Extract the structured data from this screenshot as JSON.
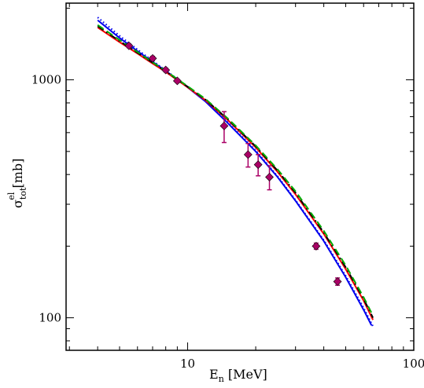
{
  "chart_data": {
    "type": "line",
    "x_scale": "log",
    "y_scale": "log",
    "xlim": [
      2.9,
      100
    ],
    "ylim": [
      73,
      2100
    ],
    "grid": false,
    "xlabel": {
      "main": "E",
      "sub": "n",
      "unit": " [MeV]"
    },
    "ylabel": {
      "main": "σ",
      "sub": "tot",
      "sup": "el",
      "unit": " [mb]"
    },
    "x_tick_labels": [
      {
        "value": 10,
        "label": "10"
      },
      {
        "value": 100,
        "label": "100"
      }
    ],
    "y_tick_labels": [
      {
        "value": 100,
        "label": "100"
      },
      {
        "value": 1000,
        "label": "1000"
      }
    ],
    "series": [
      {
        "style": "solid",
        "color": "#0000ee",
        "points": [
          [
            4,
            1780
          ],
          [
            5,
            1500
          ],
          [
            6,
            1320
          ],
          [
            7,
            1190
          ],
          [
            8,
            1090
          ],
          [
            10,
            930
          ],
          [
            12,
            810
          ],
          [
            15,
            660
          ],
          [
            20,
            500
          ],
          [
            25,
            390
          ],
          [
            30,
            310
          ],
          [
            40,
            210
          ],
          [
            50,
            148
          ],
          [
            60,
            108
          ],
          [
            65,
            93
          ]
        ]
      },
      {
        "style": "dotted",
        "color": "#0000ee",
        "points": [
          [
            4,
            1830
          ],
          [
            5,
            1530
          ],
          [
            6,
            1340
          ],
          [
            7,
            1200
          ],
          [
            8,
            1095
          ],
          [
            10,
            935
          ],
          [
            12,
            815
          ],
          [
            15,
            665
          ],
          [
            20,
            505
          ],
          [
            25,
            393
          ],
          [
            30,
            312
          ],
          [
            40,
            212
          ],
          [
            50,
            150
          ],
          [
            60,
            110
          ],
          [
            66,
            92
          ]
        ]
      },
      {
        "style": "solid",
        "color": "#ff0000",
        "points": [
          [
            4,
            1660
          ],
          [
            5,
            1440
          ],
          [
            6,
            1290
          ],
          [
            7,
            1170
          ],
          [
            8,
            1080
          ],
          [
            10,
            930
          ],
          [
            12,
            820
          ],
          [
            15,
            680
          ],
          [
            20,
            520
          ],
          [
            25,
            410
          ],
          [
            30,
            330
          ],
          [
            40,
            225
          ],
          [
            50,
            160
          ],
          [
            60,
            118
          ],
          [
            66,
            98
          ]
        ]
      },
      {
        "style": "dash-dot",
        "color": "#000000",
        "points": [
          [
            4,
            1680
          ],
          [
            5,
            1455
          ],
          [
            6,
            1300
          ],
          [
            7,
            1180
          ],
          [
            8,
            1085
          ],
          [
            10,
            935
          ],
          [
            12,
            825
          ],
          [
            15,
            685
          ],
          [
            20,
            525
          ],
          [
            25,
            415
          ],
          [
            30,
            335
          ],
          [
            40,
            228
          ],
          [
            50,
            163
          ],
          [
            60,
            120
          ],
          [
            66,
            100
          ]
        ]
      },
      {
        "style": "dashed",
        "color": "#00aa00",
        "points": [
          [
            4,
            1700
          ],
          [
            5,
            1470
          ],
          [
            6,
            1310
          ],
          [
            7,
            1185
          ],
          [
            8,
            1090
          ],
          [
            10,
            940
          ],
          [
            12,
            830
          ],
          [
            15,
            690
          ],
          [
            20,
            530
          ],
          [
            25,
            420
          ],
          [
            30,
            340
          ],
          [
            40,
            232
          ],
          [
            50,
            166
          ],
          [
            60,
            122
          ],
          [
            66,
            102
          ]
        ]
      }
    ],
    "data_points": {
      "marker": "diamond",
      "color": "#aa0066",
      "points": [
        {
          "x": 5.5,
          "y": 1390,
          "err": 25
        },
        {
          "x": 7,
          "y": 1230,
          "err": 25
        },
        {
          "x": 8,
          "y": 1100,
          "err": 20
        },
        {
          "x": 9,
          "y": 990,
          "err": 15
        },
        {
          "x": 14.5,
          "y": 640,
          "err": 95
        },
        {
          "x": 18.5,
          "y": 485,
          "err": 55
        },
        {
          "x": 20.5,
          "y": 440,
          "err": 45
        },
        {
          "x": 23,
          "y": 390,
          "err": 45
        },
        {
          "x": 37,
          "y": 200,
          "err": 6
        },
        {
          "x": 46,
          "y": 142,
          "err": 5
        }
      ]
    }
  }
}
